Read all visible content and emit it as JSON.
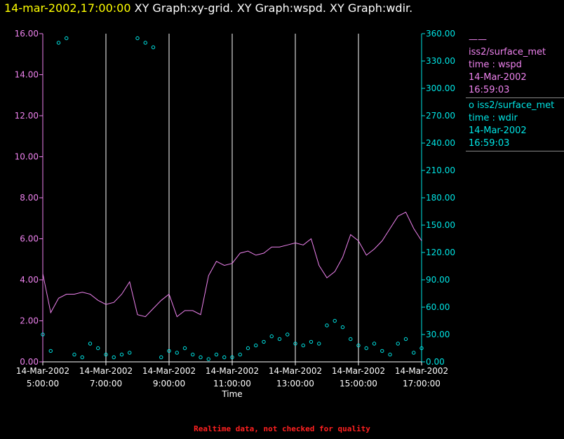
{
  "header": {
    "timestamp": "14-mar-2002,17:00:00",
    "graphs": "XY Graph:xy-grid.  XY Graph:wspd.  XY Graph:wdir."
  },
  "legend": [
    {
      "symbol": "——",
      "source": "iss2/surface_met",
      "line2": "time : wspd",
      "line3": "14-Mar-2002",
      "line4": "16:59:03",
      "color": "#ee82ee"
    },
    {
      "symbol": "o",
      "source": "iss2/surface_met",
      "line2": "time : wdir",
      "line3": "14-Mar-2002",
      "line4": "16:59:03",
      "color": "#00e5e5"
    }
  ],
  "footer": "Realtime data, not checked for quality",
  "chart_data": {
    "type": "line",
    "xlabel": "Time",
    "x_ticks": [
      {
        "date": "14-Mar-2002",
        "time": "5:00:00"
      },
      {
        "date": "14-Mar-2002",
        "time": "7:00:00"
      },
      {
        "date": "14-Mar-2002",
        "time": "9:00:00"
      },
      {
        "date": "14-Mar-2002",
        "time": "11:00:00"
      },
      {
        "date": "14-Mar-2002",
        "time": "13:00:00"
      },
      {
        "date": "14-Mar-2002",
        "time": "15:00:00"
      },
      {
        "date": "14-Mar-2002",
        "time": "17:00:00"
      }
    ],
    "xlim": [
      "14-Mar-2002 5:00:00",
      "14-Mar-2002 17:00:00"
    ],
    "y_left": {
      "ylim": [
        0,
        16
      ],
      "ticks": [
        "0.00",
        "2.00",
        "4.00",
        "6.00",
        "8.00",
        "10.00",
        "12.00",
        "14.00",
        "16.00"
      ],
      "color": "#ee82ee"
    },
    "y_right": {
      "ylim": [
        0,
        360
      ],
      "ticks": [
        "0.00",
        "30.00",
        "60.00",
        "90.00",
        "120.00",
        "150.00",
        "180.00",
        "210.00",
        "240.00",
        "270.00",
        "300.00",
        "330.00",
        "360.00"
      ],
      "color": "#00e5e5"
    },
    "grid": "vertical",
    "series": [
      {
        "name": "iss2/surface_met time : wspd",
        "axis": "left",
        "style": "line",
        "color": "#ee82ee",
        "x": [
          "5:00",
          "5:15",
          "5:30",
          "5:45",
          "6:00",
          "6:15",
          "6:30",
          "6:45",
          "7:00",
          "7:15",
          "7:30",
          "7:45",
          "8:00",
          "8:15",
          "8:30",
          "8:45",
          "9:00",
          "9:15",
          "9:30",
          "9:45",
          "10:00",
          "10:15",
          "10:30",
          "10:45",
          "11:00",
          "11:15",
          "11:30",
          "11:45",
          "12:00",
          "12:15",
          "12:30",
          "12:45",
          "13:00",
          "13:15",
          "13:30",
          "13:45",
          "14:00",
          "14:15",
          "14:30",
          "14:45",
          "15:00",
          "15:15",
          "15:30",
          "15:45",
          "16:00",
          "16:15",
          "16:30",
          "16:45",
          "17:00"
        ],
        "values": [
          4.3,
          2.4,
          3.1,
          3.3,
          3.3,
          3.4,
          3.3,
          3.0,
          2.8,
          2.9,
          3.3,
          3.9,
          2.3,
          2.2,
          2.6,
          3.0,
          3.3,
          2.2,
          2.5,
          2.5,
          2.3,
          4.2,
          4.9,
          4.7,
          4.8,
          5.3,
          5.4,
          5.2,
          5.3,
          5.6,
          5.6,
          5.7,
          5.8,
          5.7,
          6.0,
          4.7,
          4.1,
          4.4,
          5.1,
          6.2,
          5.9,
          5.2,
          5.5,
          5.9,
          6.5,
          7.1,
          7.3,
          6.5,
          5.9
        ]
      },
      {
        "name": "iss2/surface_met time : wdir",
        "axis": "right",
        "style": "scatter",
        "color": "#00e5e5",
        "x": [
          "5:00",
          "5:15",
          "5:30",
          "5:45",
          "6:00",
          "6:15",
          "6:30",
          "6:45",
          "7:00",
          "7:15",
          "7:30",
          "7:45",
          "8:00",
          "8:15",
          "8:30",
          "8:45",
          "9:00",
          "9:15",
          "9:30",
          "9:45",
          "10:00",
          "10:15",
          "10:30",
          "10:45",
          "11:00",
          "11:15",
          "11:30",
          "11:45",
          "12:00",
          "12:15",
          "12:30",
          "12:45",
          "13:00",
          "13:15",
          "13:30",
          "13:45",
          "14:00",
          "14:15",
          "14:30",
          "14:45",
          "15:00",
          "15:15",
          "15:30",
          "15:45",
          "16:00",
          "16:15",
          "16:30",
          "16:45",
          "17:00"
        ],
        "values": [
          30,
          12,
          350,
          355,
          8,
          5,
          20,
          15,
          8,
          5,
          8,
          10,
          355,
          350,
          345,
          5,
          12,
          10,
          15,
          8,
          5,
          3,
          8,
          5,
          5,
          8,
          15,
          18,
          22,
          28,
          25,
          30,
          20,
          18,
          22,
          20,
          40,
          45,
          38,
          25,
          18,
          15,
          20,
          12,
          8,
          20,
          25,
          10,
          15
        ]
      }
    ]
  }
}
